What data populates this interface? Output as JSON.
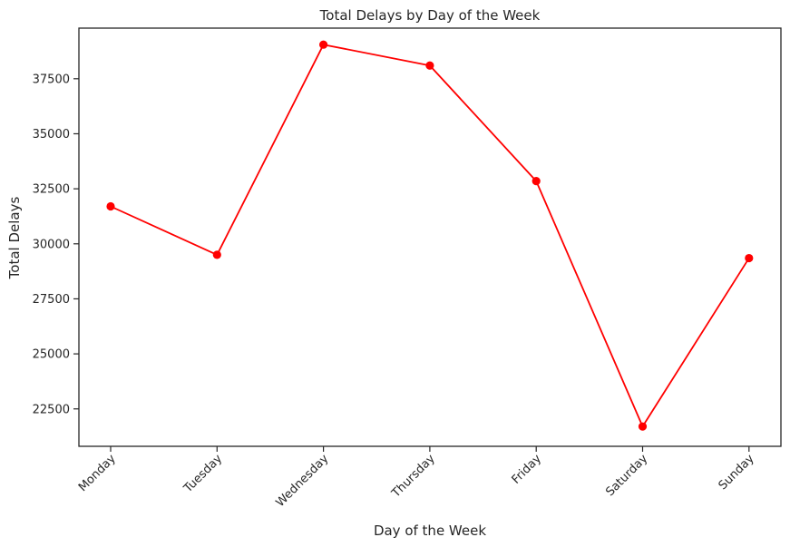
{
  "chart_data": {
    "type": "line",
    "title": "Total Delays by Day of the Week",
    "xlabel": "Day of the Week",
    "ylabel": "Total Delays",
    "categories": [
      "Monday",
      "Tuesday",
      "Wednesday",
      "Thursday",
      "Friday",
      "Saturday",
      "Sunday"
    ],
    "series": [
      {
        "values": [
          31700,
          29500,
          39050,
          38100,
          32850,
          21700,
          29350
        ],
        "color": "#ff0000",
        "marker": "circle"
      }
    ],
    "yticks": [
      22500,
      25000,
      27500,
      30000,
      32500,
      35000,
      37500
    ],
    "ylim": [
      20800,
      39800
    ],
    "grid": false,
    "legend": "none"
  }
}
